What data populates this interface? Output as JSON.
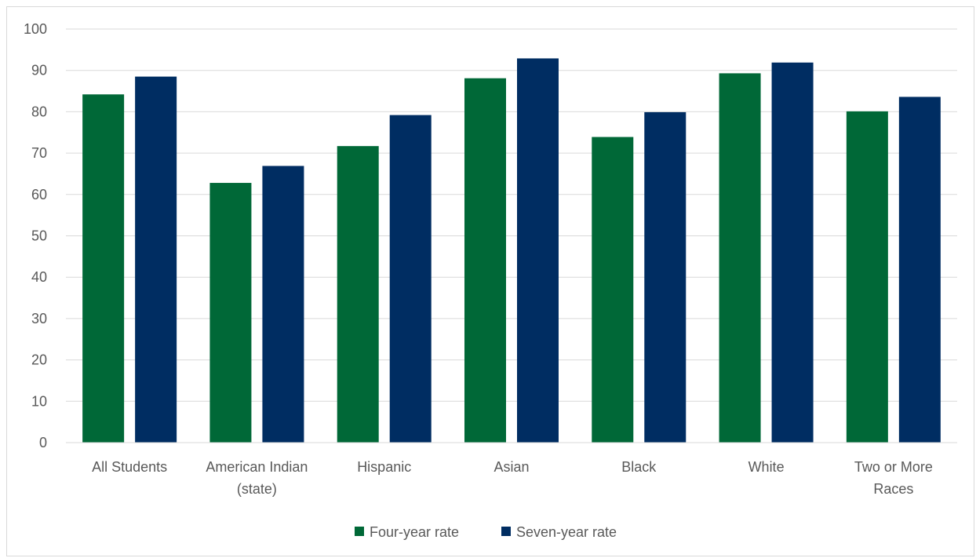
{
  "chart_data": {
    "type": "bar",
    "categories": [
      [
        "All Students"
      ],
      [
        "American Indian",
        "(state)"
      ],
      [
        "Hispanic"
      ],
      [
        "Asian"
      ],
      [
        "Black"
      ],
      [
        "White"
      ],
      [
        "Two or More",
        "Races"
      ]
    ],
    "series": [
      {
        "name": "Four-year rate",
        "color": "#006837",
        "values": [
          84.2,
          62.8,
          71.7,
          88.1,
          73.9,
          89.3,
          80.1
        ]
      },
      {
        "name": "Seven-year rate",
        "color": "#002d62",
        "values": [
          88.5,
          66.9,
          79.2,
          92.9,
          79.9,
          91.9,
          83.6
        ]
      }
    ],
    "ylim": [
      0,
      100
    ],
    "yticks": [
      "0",
      "10",
      "20",
      "30",
      "40",
      "50",
      "60",
      "70",
      "80",
      "90",
      "100"
    ],
    "grid": true,
    "legend_position": "bottom",
    "title": "",
    "xlabel": "",
    "ylabel": ""
  }
}
